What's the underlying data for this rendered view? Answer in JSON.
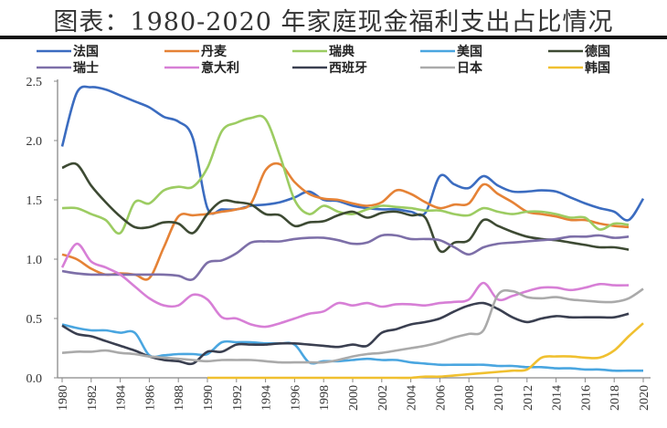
{
  "chart_data": {
    "type": "line",
    "title": "图表：1980-2020 年家庭现金福利支出占比情况",
    "xlabel": "",
    "ylabel": "",
    "xlim": [
      1980,
      2020
    ],
    "ylim": [
      0,
      2.5
    ],
    "yticks": [
      "0.0",
      "0.5",
      "1.0",
      "1.5",
      "2.0",
      "2.5"
    ],
    "xticks": [
      "1980",
      "1982",
      "1984",
      "1986",
      "1988",
      "1990",
      "1992",
      "1994",
      "1996",
      "1998",
      "2000",
      "2002",
      "2004",
      "2006",
      "2008",
      "2010",
      "2012",
      "2014",
      "2016",
      "2018",
      "2020"
    ],
    "grid": false,
    "legend": "top",
    "x": [
      1980,
      1981,
      1982,
      1983,
      1984,
      1985,
      1986,
      1987,
      1988,
      1989,
      1990,
      1991,
      1992,
      1993,
      1994,
      1995,
      1996,
      1997,
      1998,
      1999,
      2000,
      2001,
      2002,
      2003,
      2004,
      2005,
      2006,
      2007,
      2008,
      2009,
      2010,
      2011,
      2012,
      2013,
      2014,
      2015,
      2016,
      2017,
      2018,
      2019,
      2020
    ],
    "series": [
      {
        "name": "法国",
        "color": "#3b6cc0",
        "values": [
          1.95,
          2.4,
          2.45,
          2.43,
          2.38,
          2.33,
          2.28,
          2.2,
          2.16,
          2.02,
          1.43,
          1.42,
          1.42,
          1.45,
          1.46,
          1.48,
          1.52,
          1.57,
          1.5,
          1.49,
          1.45,
          1.43,
          1.42,
          1.42,
          1.4,
          1.39,
          1.7,
          1.63,
          1.6,
          1.7,
          1.62,
          1.57,
          1.57,
          1.58,
          1.57,
          1.52,
          1.47,
          1.43,
          1.4,
          1.33,
          1.51
        ]
      },
      {
        "name": "丹麦",
        "color": "#e58236",
        "values": [
          1.04,
          1.0,
          0.92,
          0.87,
          0.88,
          0.87,
          0.84,
          1.1,
          1.36,
          1.37,
          1.38,
          1.4,
          1.42,
          1.47,
          1.75,
          1.8,
          1.65,
          1.55,
          1.51,
          1.5,
          1.47,
          1.45,
          1.48,
          1.58,
          1.55,
          1.48,
          1.43,
          1.46,
          1.47,
          1.63,
          1.55,
          1.48,
          1.4,
          1.38,
          1.36,
          1.33,
          1.33,
          1.3,
          1.28,
          1.27,
          null
        ]
      },
      {
        "name": "瑞典",
        "color": "#9ccc62",
        "values": [
          1.43,
          1.43,
          1.38,
          1.33,
          1.22,
          1.48,
          1.47,
          1.58,
          1.61,
          1.61,
          1.77,
          2.08,
          2.15,
          2.19,
          2.18,
          1.87,
          1.5,
          1.38,
          1.45,
          1.4,
          1.38,
          1.42,
          1.45,
          1.44,
          1.43,
          1.41,
          1.41,
          1.38,
          1.37,
          1.43,
          1.4,
          1.38,
          1.4,
          1.4,
          1.38,
          1.35,
          1.35,
          1.25,
          1.3,
          1.29,
          null
        ]
      },
      {
        "name": "美国",
        "color": "#4aa6e0",
        "values": [
          0.45,
          0.42,
          0.4,
          0.4,
          0.38,
          0.38,
          0.19,
          0.19,
          0.2,
          0.2,
          0.2,
          0.3,
          0.3,
          0.3,
          0.29,
          0.29,
          0.28,
          0.13,
          0.14,
          0.14,
          0.15,
          0.16,
          0.15,
          0.15,
          0.13,
          0.12,
          0.11,
          0.11,
          0.11,
          0.11,
          0.1,
          0.1,
          0.09,
          0.09,
          0.08,
          0.08,
          0.07,
          0.07,
          0.06,
          0.06,
          0.06
        ]
      },
      {
        "name": "德国",
        "color": "#3d4a33",
        "values": [
          1.77,
          1.8,
          1.62,
          1.48,
          1.36,
          1.27,
          1.27,
          1.31,
          1.3,
          1.22,
          1.38,
          1.49,
          1.48,
          1.46,
          1.38,
          1.37,
          1.28,
          1.31,
          1.32,
          1.37,
          1.4,
          1.35,
          1.39,
          1.4,
          1.37,
          1.35,
          1.07,
          1.14,
          1.16,
          1.33,
          1.28,
          1.23,
          1.19,
          1.17,
          1.16,
          1.14,
          1.12,
          1.1,
          1.1,
          1.08,
          null
        ]
      },
      {
        "name": "瑞士",
        "color": "#7d6fa8",
        "values": [
          0.9,
          0.88,
          0.87,
          0.87,
          0.87,
          0.87,
          0.87,
          0.87,
          0.86,
          0.83,
          0.97,
          0.99,
          1.05,
          1.14,
          1.15,
          1.15,
          1.17,
          1.18,
          1.18,
          1.16,
          1.13,
          1.14,
          1.2,
          1.2,
          1.17,
          1.17,
          1.16,
          1.1,
          1.04,
          1.1,
          1.13,
          1.14,
          1.15,
          1.16,
          1.17,
          1.19,
          1.19,
          1.2,
          1.18,
          1.19,
          null
        ]
      },
      {
        "name": "意大利",
        "color": "#d77fd6",
        "values": [
          0.93,
          1.13,
          0.98,
          0.93,
          0.87,
          0.77,
          0.67,
          0.61,
          0.61,
          0.7,
          0.66,
          0.51,
          0.5,
          0.45,
          0.43,
          0.46,
          0.5,
          0.54,
          0.56,
          0.63,
          0.61,
          0.63,
          0.6,
          0.62,
          0.62,
          0.61,
          0.63,
          0.64,
          0.66,
          0.8,
          0.66,
          0.69,
          0.73,
          0.76,
          0.76,
          0.74,
          0.76,
          0.79,
          0.78,
          0.78,
          null
        ]
      },
      {
        "name": "西班牙",
        "color": "#3a3f50",
        "values": [
          0.44,
          0.37,
          0.35,
          0.31,
          0.27,
          0.23,
          0.18,
          0.15,
          0.14,
          0.12,
          0.22,
          0.22,
          0.28,
          0.28,
          0.28,
          0.29,
          0.29,
          0.28,
          0.27,
          0.26,
          0.28,
          0.27,
          0.38,
          0.41,
          0.45,
          0.47,
          0.5,
          0.56,
          0.61,
          0.63,
          0.58,
          0.51,
          0.47,
          0.5,
          0.52,
          0.51,
          0.51,
          0.51,
          0.51,
          0.54,
          null
        ]
      },
      {
        "name": "日本",
        "color": "#aaaaaa",
        "values": [
          0.21,
          0.22,
          0.22,
          0.23,
          0.21,
          0.2,
          0.18,
          0.17,
          0.16,
          0.15,
          0.14,
          0.15,
          0.15,
          0.15,
          0.14,
          0.13,
          0.13,
          0.13,
          0.13,
          0.15,
          0.18,
          0.2,
          0.21,
          0.23,
          0.25,
          0.27,
          0.3,
          0.34,
          0.37,
          0.4,
          0.7,
          0.73,
          0.68,
          0.67,
          0.68,
          0.66,
          0.65,
          0.64,
          0.64,
          0.67,
          0.75
        ]
      },
      {
        "name": "韩国",
        "color": "#f0c030",
        "values": [
          null,
          null,
          null,
          null,
          null,
          null,
          null,
          null,
          null,
          null,
          0.0,
          0.0,
          0.0,
          0.0,
          0.0,
          0.0,
          0.0,
          0.0,
          0.0,
          0.0,
          0.0,
          0.0,
          0.0,
          0.0,
          0.0,
          0.01,
          0.01,
          0.02,
          0.03,
          0.04,
          0.05,
          0.06,
          0.07,
          0.17,
          0.18,
          0.18,
          0.17,
          0.17,
          0.23,
          0.35,
          0.46
        ]
      }
    ]
  }
}
